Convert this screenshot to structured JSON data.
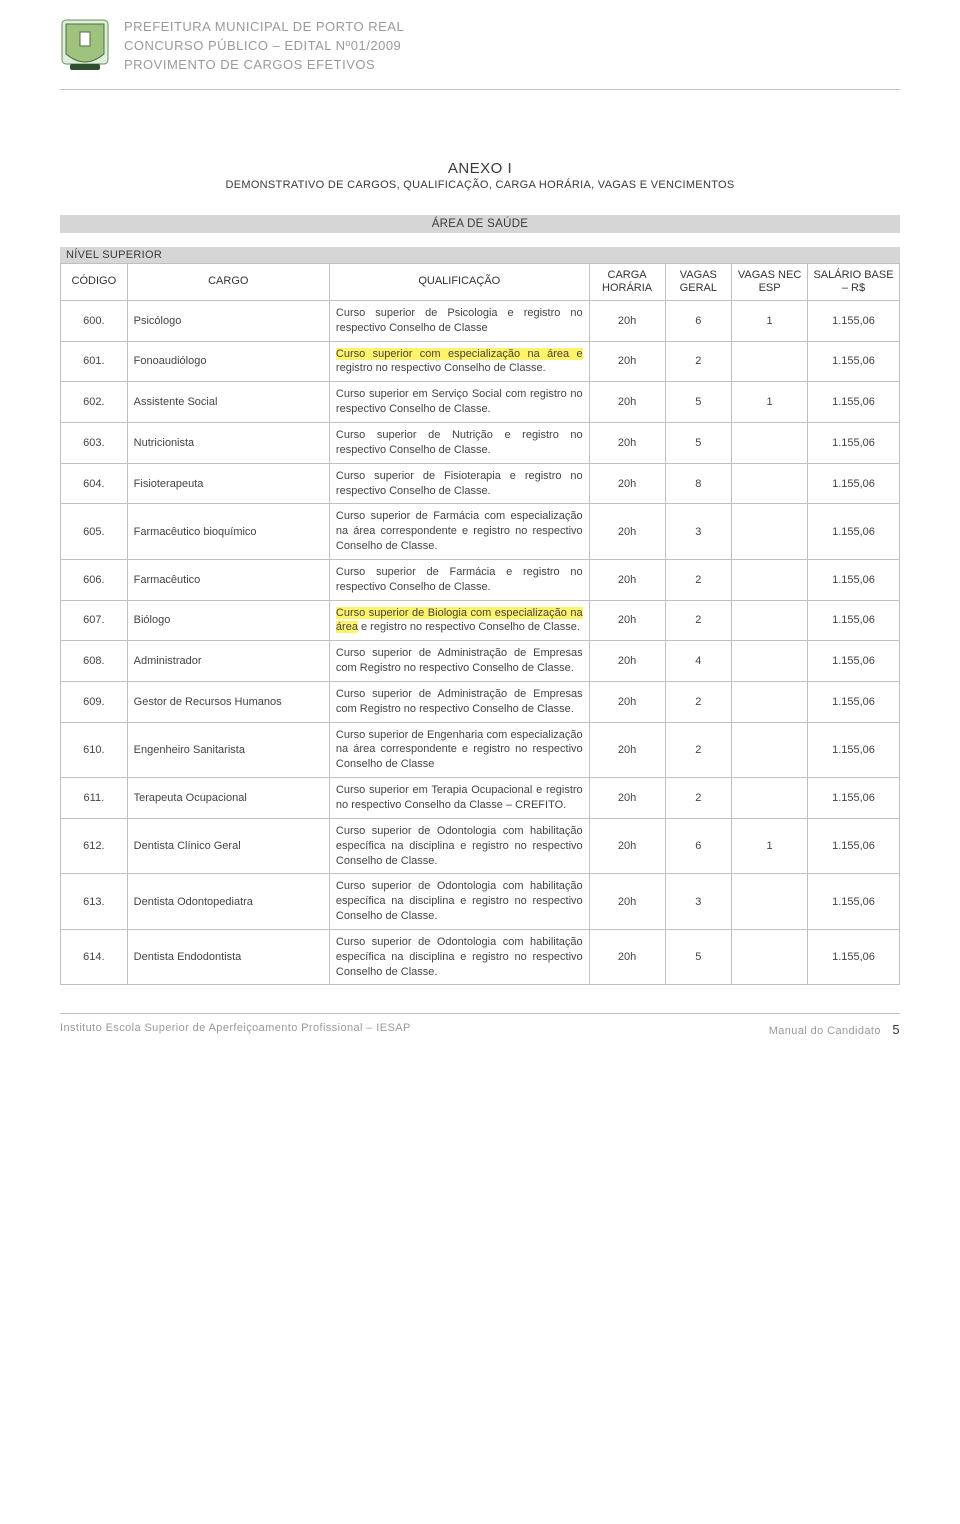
{
  "header": {
    "line1": "PREFEITURA MUNICIPAL DE PORTO REAL",
    "line2": "CONCURSO PÚBLICO – EDITAL Nº01/2009",
    "line3": "PROVIMENTO DE CARGOS EFETIVOS"
  },
  "anexo": {
    "title": "ANEXO I",
    "subtitle": "DEMONSTRATIVO DE CARGOS, QUALIFICAÇÃO, CARGA HORÁRIA, VAGAS E VENCIMENTOS"
  },
  "section_bar": "ÁREA DE SAÚDE",
  "level_bar": "NÍVEL SUPERIOR",
  "table": {
    "columns": {
      "codigo": "CÓDIGO",
      "cargo": "CARGO",
      "qualificacao": "QUALIFICAÇÃO",
      "carga": "CARGA HORÁRIA",
      "vagas_geral": "VAGAS GERAL",
      "vagas_nec": "VAGAS NEC ESP",
      "salario": "SALÁRIO BASE – R$"
    },
    "rows": [
      {
        "codigo": "600.",
        "cargo": "Psicólogo",
        "qual_pre": "Curso superior de Psicologia e registro no respectivo Conselho de Classe",
        "hl": "",
        "qual_post": "",
        "carga": "20h",
        "vg": "6",
        "vne": "1",
        "sal": "1.155,06",
        "tall": false
      },
      {
        "codigo": "601.",
        "cargo": "Fonoaudiólogo",
        "qual_pre": "",
        "hl": "Curso superior com especialização na área e",
        "qual_post": " registro no respectivo Conselho de Classe.",
        "carga": "20h",
        "vg": "2",
        "vne": "",
        "sal": "1.155,06",
        "tall": false
      },
      {
        "codigo": "602.",
        "cargo": "Assistente Social",
        "qual_pre": "Curso superior em Serviço Social com registro no respectivo Conselho de Classe.",
        "hl": "",
        "qual_post": "",
        "carga": "20h",
        "vg": "5",
        "vne": "1",
        "sal": "1.155,06",
        "tall": false
      },
      {
        "codigo": "603.",
        "cargo": "Nutricionista",
        "qual_pre": "Curso superior de Nutrição e registro no respectivo Conselho de Classe.",
        "hl": "",
        "qual_post": "",
        "carga": "20h",
        "vg": "5",
        "vne": "",
        "sal": "1.155,06",
        "tall": false
      },
      {
        "codigo": "604.",
        "cargo": "Fisioterapeuta",
        "qual_pre": "Curso superior de Fisioterapia e registro no respectivo Conselho de Classe.",
        "hl": "",
        "qual_post": "",
        "carga": "20h",
        "vg": "8",
        "vne": "",
        "sal": "1.155,06",
        "tall": false
      },
      {
        "codigo": "605.",
        "cargo": "Farmacêutico bioquímico",
        "qual_pre": "Curso superior de Farmácia com especialização na área correspondente e registro no respectivo Conselho de Classe.",
        "hl": "",
        "qual_post": "",
        "carga": "20h",
        "vg": "3",
        "vne": "",
        "sal": "1.155,06",
        "tall": false
      },
      {
        "codigo": "606.",
        "cargo": "Farmacêutico",
        "qual_pre": "Curso superior de Farmácia e registro no respectivo Conselho de Classe.",
        "hl": "",
        "qual_post": "",
        "carga": "20h",
        "vg": "2",
        "vne": "",
        "sal": "1.155,06",
        "tall": false
      },
      {
        "codigo": "607.",
        "cargo": "Biólogo",
        "qual_pre": "",
        "hl": "Curso superior de Biologia com especialização na área",
        "qual_post": " e registro no respectivo Conselho de Classe.",
        "carga": "20h",
        "vg": "2",
        "vne": "",
        "sal": "1.155,06",
        "tall": false
      },
      {
        "codigo": "608.",
        "cargo": "Administrador",
        "qual_pre": "Curso superior de Administração de Empresas com Registro no respectivo Conselho de Classe.",
        "hl": "",
        "qual_post": "",
        "carga": "20h",
        "vg": "4",
        "vne": "",
        "sal": "1.155,06",
        "tall": false
      },
      {
        "codigo": "609.",
        "cargo": "Gestor de Recursos Humanos",
        "qual_pre": "Curso superior de Administração de Empresas com Registro no respectivo Conselho de Classe.",
        "hl": "",
        "qual_post": "",
        "carga": "20h",
        "vg": "2",
        "vne": "",
        "sal": "1.155,06",
        "tall": false
      },
      {
        "codigo": "610.",
        "cargo": "Engenheiro Sanitarista",
        "qual_pre": "Curso superior de Engenharia com especialização na área correspondente e registro no respectivo Conselho de Classe",
        "hl": "",
        "qual_post": "",
        "carga": "20h",
        "vg": "2",
        "vne": "",
        "sal": "1.155,06",
        "tall": false
      },
      {
        "codigo": "611.",
        "cargo": "Terapeuta Ocupacional",
        "qual_pre": "Curso superior em Terapia Ocupacional e registro no respectivo Conselho da Classe – CREFITO.",
        "hl": "",
        "qual_post": "",
        "carga": "20h",
        "vg": "2",
        "vne": "",
        "sal": "1.155,06",
        "tall": false
      },
      {
        "codigo": "612.",
        "cargo": "Dentista Clínico Geral",
        "qual_pre": "Curso superior de Odontologia com habilitação específica na disciplina e registro no respectivo Conselho de Classe.",
        "hl": "",
        "qual_post": "",
        "carga": "20h",
        "vg": "6",
        "vne": "1",
        "sal": "1.155,06",
        "tall": false
      },
      {
        "codigo": "613.",
        "cargo": "Dentista Odontopediatra",
        "qual_pre": "Curso superior de Odontologia com habilitação específica na disciplina e registro no respectivo Conselho de Classe.",
        "hl": "",
        "qual_post": "",
        "carga": "20h",
        "vg": "3",
        "vne": "",
        "sal": "1.155,06",
        "tall": true
      },
      {
        "codigo": "614.",
        "cargo": "Dentista Endodontista",
        "qual_pre": "Curso superior de Odontologia com habilitação específica na disciplina e registro no respectivo Conselho de Classe.",
        "hl": "",
        "qual_post": "",
        "carga": "20h",
        "vg": "5",
        "vne": "",
        "sal": "1.155,06",
        "tall": true
      }
    ]
  },
  "footer": {
    "left": "Instituto Escola Superior de Aperfeiçoamento Profissional – IESAP",
    "right": "Manual do Candidato",
    "page": "5"
  },
  "colors": {
    "border": "#bfbfbf",
    "bar_bg": "#d6d6d6",
    "highlight": "#fff36a",
    "muted_text": "#9a9a9a"
  }
}
